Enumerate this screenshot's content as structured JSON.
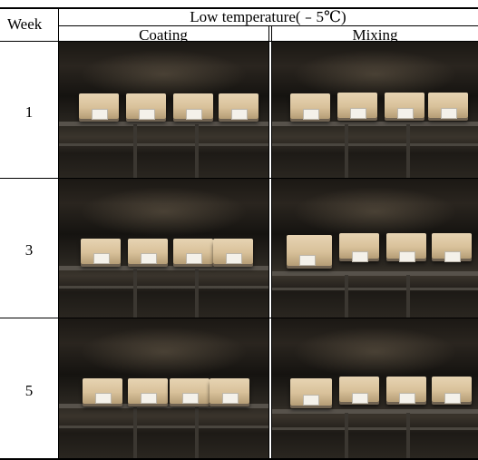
{
  "table": {
    "week_header": "Week",
    "group_header": "Low temperature(﹣5℃)",
    "columns": [
      "Coating",
      "Mixing"
    ],
    "rows": [
      {
        "week": "1"
      },
      {
        "week": "3"
      },
      {
        "week": "5"
      }
    ]
  }
}
